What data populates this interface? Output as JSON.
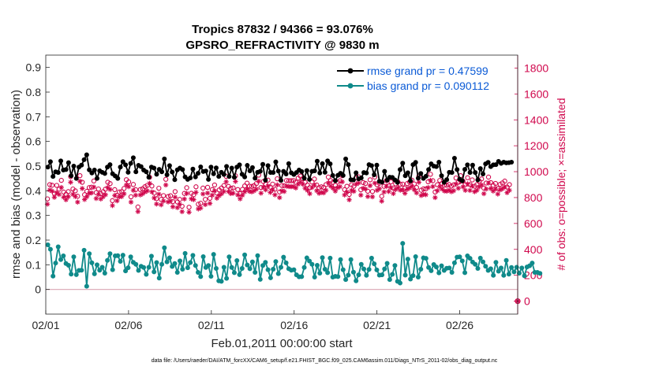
{
  "chart_data": {
    "type": "line",
    "title": "Tropics 87832 / 94366 = 93.076%",
    "subtitle": "GPSRO_REFRACTIVITY @ 9830 m",
    "xlabel": "Feb.01,2011 00:00:00 start",
    "ylabel": "rmse and bias (model - observation)",
    "y2label": "# of obs: o=possible; ×=assimilated",
    "footer": "data file: /Users/raeder/DAI/ATM_forcXX/CAM6_setup/f.e21.FHIST_BGC.f09_025.CAM6assim.011/Diags_NTrS_2011-02/obs_diag_output.nc",
    "xlim": [
      0,
      28.5
    ],
    "ylim": [
      -0.1,
      0.95
    ],
    "y2lim": [
      -100,
      1900
    ],
    "xticks": [
      0,
      5,
      10,
      15,
      20,
      25
    ],
    "xtick_labels": [
      "02/01",
      "02/06",
      "02/11",
      "02/16",
      "02/21",
      "02/26"
    ],
    "yticks": [
      "0",
      "0.1",
      "0.2",
      "0.3",
      "0.4",
      "0.5",
      "0.6",
      "0.7",
      "0.8",
      "0.9"
    ],
    "y2ticks": [
      "0",
      "200",
      "400",
      "600",
      "800",
      "1000",
      "1200",
      "1400",
      "1600",
      "1800"
    ],
    "colors": {
      "rmse": "#000000",
      "bias": "#0f8a8a",
      "obs": "#d0084d",
      "legend_text": "#0a5ad6",
      "zero_line": "#d9a5b3"
    },
    "series": [
      {
        "name": "rmse grand pr = 0.47599",
        "values": [
          0.496,
          0.518,
          0.458,
          0.477,
          0.474,
          0.521,
          0.484,
          0.486,
          0.514,
          0.461,
          0.5,
          0.45,
          0.496,
          0.504,
          0.526,
          0.546,
          0.485,
          0.472,
          0.484,
          0.45,
          0.481,
          0.475,
          0.47,
          0.496,
          0.506,
          0.469,
          0.46,
          0.45,
          0.496,
          0.518,
          0.505,
          0.475,
          0.511,
          0.534,
          0.477,
          0.503,
          0.498,
          0.484,
          0.477,
          0.455,
          0.496,
          0.492,
          0.467,
          0.487,
          0.477,
          0.529,
          0.465,
          0.502,
          0.476,
          0.445,
          0.485,
          0.492,
          0.486,
          0.456,
          0.446,
          0.452,
          0.488,
          0.456,
          0.471,
          0.497,
          0.478,
          0.48,
          0.446,
          0.496,
          0.469,
          0.493,
          0.458,
          0.475,
          0.466,
          0.499,
          0.458,
          0.492,
          0.455,
          0.496,
          0.505,
          0.467,
          0.456,
          0.503,
          0.481,
          0.494,
          0.451,
          0.475,
          0.479,
          0.507,
          0.443,
          0.502,
          0.474,
          0.474,
          0.517,
          0.48,
          0.442,
          0.479,
          0.468,
          0.51,
          0.473,
          0.466,
          0.474,
          0.484,
          0.478,
          0.451,
          0.482,
          0.446,
          0.479,
          0.481,
          0.52,
          0.472,
          0.51,
          0.475,
          0.521,
          0.509,
          0.462,
          0.441,
          0.463,
          0.471,
          0.462,
          0.529,
          0.506,
          0.445,
          0.444,
          0.473,
          0.448,
          0.452,
          0.474,
          0.472,
          0.506,
          0.502,
          0.465,
          0.504,
          0.438,
          0.435,
          0.479,
          0.443,
          0.455,
          0.454,
          0.444,
          0.434,
          0.486,
          0.512,
          0.461,
          0.473,
          0.44,
          0.506,
          0.515,
          0.451,
          0.47,
          0.45,
          0.459,
          0.486,
          0.509,
          0.5,
          0.498,
          0.516,
          0.461,
          0.434,
          0.445,
          0.475,
          0.474,
          0.532,
          0.486,
          0.447,
          0.44,
          0.487,
          0.505,
          0.474,
          0.504,
          0.474,
          0.444,
          0.49,
          0.468,
          0.509,
          0.515,
          0.498,
          0.505,
          0.506,
          0.519,
          0.511,
          0.516,
          0.513,
          0.514,
          0.516
        ]
      },
      {
        "name": "bias grand pr = 0.090112",
        "values": [
          0.181,
          0.163,
          0.054,
          0.107,
          0.173,
          0.121,
          0.136,
          0.105,
          0.098,
          0.062,
          0.132,
          0.06,
          0.077,
          0.078,
          0.159,
          0.013,
          0.145,
          0.108,
          0.063,
          0.1,
          0.078,
          0.09,
          0.066,
          0.118,
          0.145,
          0.08,
          0.136,
          0.137,
          0.114,
          0.139,
          0.075,
          0.088,
          0.132,
          0.11,
          0.102,
          0.077,
          0.094,
          0.089,
          0.061,
          0.09,
          0.135,
          0.071,
          0.109,
          0.046,
          0.102,
          0.169,
          0.112,
          0.128,
          0.093,
          0.105,
          0.069,
          0.116,
          0.082,
          0.146,
          0.088,
          0.109,
          0.138,
          0.097,
          0.069,
          0.052,
          0.133,
          0.089,
          0.097,
          0.053,
          0.142,
          0.085,
          0.035,
          0.033,
          0.09,
          0.045,
          0.132,
          0.089,
          0.068,
          0.117,
          0.06,
          0.085,
          0.14,
          0.099,
          0.084,
          0.112,
          0.069,
          0.137,
          0.041,
          0.097,
          0.11,
          0.08,
          0.047,
          0.082,
          0.113,
          0.064,
          0.09,
          0.131,
          0.108,
          0.084,
          0.078,
          0.08,
          0.059,
          0.051,
          0.052,
          0.089,
          0.128,
          0.115,
          0.102,
          0.05,
          0.098,
          0.066,
          0.129,
          0.082,
          0.068,
          0.127,
          0.05,
          0.053,
          0.052,
          0.121,
          0.08,
          0.04,
          0.058,
          0.121,
          0.07,
          0.035,
          0.059,
          0.102,
          0.083,
          0.057,
          0.081,
          0.127,
          0.104,
          0.079,
          0.058,
          0.059,
          0.083,
          0.106,
          0.04,
          0.061,
          0.097,
          0.033,
          0.026,
          0.187,
          0.058,
          0.123,
          0.042,
          0.056,
          0.133,
          0.05,
          0.082,
          0.128,
          0.126,
          0.089,
          0.076,
          0.101,
          0.091,
          0.067,
          0.096,
          0.077,
          0.086,
          0.087,
          0.069,
          0.108,
          0.131,
          0.132,
          0.116,
          0.068,
          0.136,
          0.126,
          0.111,
          0.102,
          0.085,
          0.127,
          0.112,
          0.094,
          0.077,
          0.084,
          0.057,
          0.11,
          0.074,
          0.087,
          0.057,
          0.118,
          0.062,
          0.089,
          0.071,
          0.09,
          0.066,
          0.087,
          0.055,
          0.091,
          0.096,
          0.107,
          0.069,
          0.069,
          0.065
        ]
      }
    ],
    "possible_counts": [
      790,
      900,
      895,
      832,
      894,
      865,
      933,
      842,
      825,
      846,
      962,
      866,
      852,
      810,
      969,
      918,
      822,
      848,
      877,
      880,
      928,
      838,
      866,
      831,
      845,
      865,
      918,
      908,
      776,
      861,
      817,
      843,
      846,
      870,
      938,
      921,
      806,
      901,
      861,
      727,
      862,
      868,
      884,
      894,
      957,
      889,
      835,
      792,
      872,
      786,
      815,
      941,
      808,
      814,
      768,
      846,
      766,
      786,
      733,
      832,
      876,
      725,
      833,
      822,
      883,
      749,
      756,
      873,
      786,
      879,
      794,
      861,
      897,
      835,
      859,
      874,
      892,
      964,
      886,
      871,
      875,
      968,
      862,
      830,
      863,
      890,
      911,
      888,
      886,
      892,
      908,
      973,
      878,
      924,
      903,
      935,
      880,
      904,
      864,
      945,
      843,
      893,
      891,
      932,
      930,
      930,
      931,
      918,
      950,
      966,
      946,
      918,
      897,
      876,
      920,
      943,
      897,
      876,
      883,
      878,
      900,
      958,
      931,
      918,
      895,
      920,
      930,
      969,
      861,
      887,
      824,
      899,
      888,
      952,
      960,
      860,
      916,
      909,
      849,
      937,
      847,
      958,
      899,
      911,
      810,
      887,
      931,
      890,
      921,
      873,
      906,
      921,
      902,
      904,
      873,
      908,
      920,
      934,
      905,
      878,
      965,
      857,
      867,
      867,
      922,
      980,
      930,
      843,
      899,
      932,
      909,
      896,
      895,
      901,
      889,
      898,
      951,
      918,
      969,
      927,
      900,
      953,
      900,
      936,
      888,
      899,
      928,
      944,
      873,
      912,
      958,
      915,
      895,
      909,
      870,
      902,
      913,
      927,
      881,
      900
    ],
    "assimilated_counts": [
      749,
      858,
      850,
      802,
      838,
      824,
      878,
      803,
      783,
      807,
      918,
      825,
      808,
      765,
      926,
      870,
      785,
      807,
      833,
      836,
      881,
      793,
      824,
      789,
      806,
      822,
      877,
      863,
      738,
      816,
      775,
      806,
      808,
      829,
      897,
      884,
      765,
      856,
      818,
      692,
      820,
      829,
      843,
      852,
      910,
      844,
      797,
      750,
      826,
      744,
      773,
      897,
      766,
      774,
      729,
      803,
      722,
      748,
      691,
      789,
      832,
      687,
      790,
      784,
      840,
      712,
      719,
      828,
      746,
      835,
      755,
      819,
      852,
      795,
      815,
      829,
      847,
      922,
      846,
      831,
      834,
      924,
      820,
      790,
      818,
      845,
      866,
      848,
      844,
      852,
      865,
      926,
      834,
      882,
      860,
      889,
      840,
      859,
      821,
      898,
      800,
      852,
      847,
      888,
      885,
      884,
      885,
      874,
      903,
      919,
      903,
      872,
      856,
      830,
      878,
      896,
      853,
      833,
      840,
      836,
      856,
      914,
      888,
      873,
      850,
      876,
      884,
      921,
      820,
      843,
      783,
      855,
      848,
      904,
      912,
      819,
      872,
      866,
      808,
      892,
      806,
      912,
      856,
      868,
      772,
      843,
      887,
      847,
      877,
      831,
      862,
      876,
      857,
      860,
      833,
      864,
      874,
      888,
      861,
      836,
      918,
      816,
      825,
      822,
      877,
      933,
      885,
      800,
      853,
      885,
      866,
      851,
      849,
      857,
      845,
      853,
      905,
      872,
      923,
      883,
      856,
      906,
      855,
      889,
      845,
      856,
      883,
      898,
      830,
      866,
      912,
      870,
      850,
      866,
      827,
      859,
      868,
      882,
      838,
      856
    ]
  }
}
